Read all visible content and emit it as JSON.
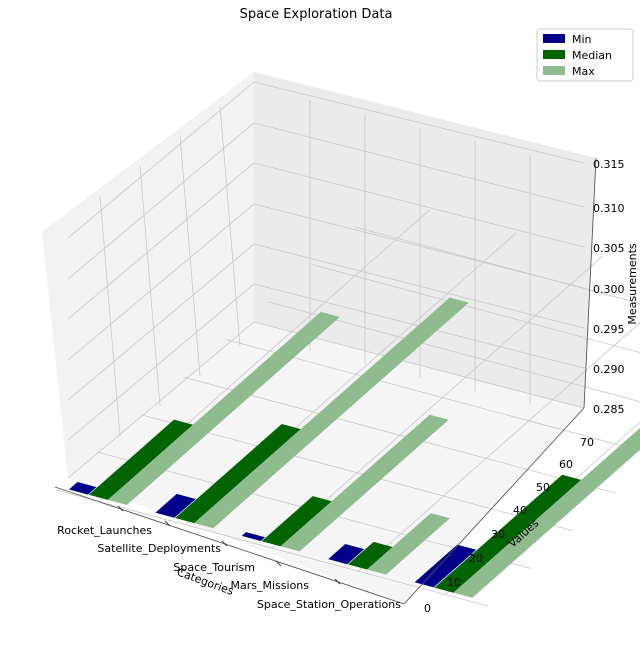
{
  "chart_data": {
    "type": "bar",
    "projection": "3d",
    "title": "Space Exploration Data",
    "xlabel": "Categories",
    "ylabel": "Values",
    "zlabel": "Measurements",
    "categories": [
      "Rocket_Launches",
      "Satellite_Deployments",
      "Space_Tourism",
      "Mars_Missions",
      "Space_Station_Operations"
    ],
    "series": [
      {
        "name": "Min",
        "color": "#00008b",
        "values": [
          2,
          5,
          1,
          4,
          10
        ]
      },
      {
        "name": "Median",
        "color": "#006400",
        "values": [
          20,
          25,
          12,
          6,
          30
        ]
      },
      {
        "name": "Max",
        "color": "#8fbc8f",
        "values": [
          50,
          60,
          35,
          15,
          70
        ]
      }
    ],
    "y_ticks": [
      0,
      10,
      20,
      30,
      40,
      50,
      60,
      70
    ],
    "z_ticks": [
      "0.285",
      "0.290",
      "0.295",
      "0.300",
      "0.305",
      "0.310",
      "0.315"
    ],
    "legend_position": "upper right",
    "grid": true
  }
}
